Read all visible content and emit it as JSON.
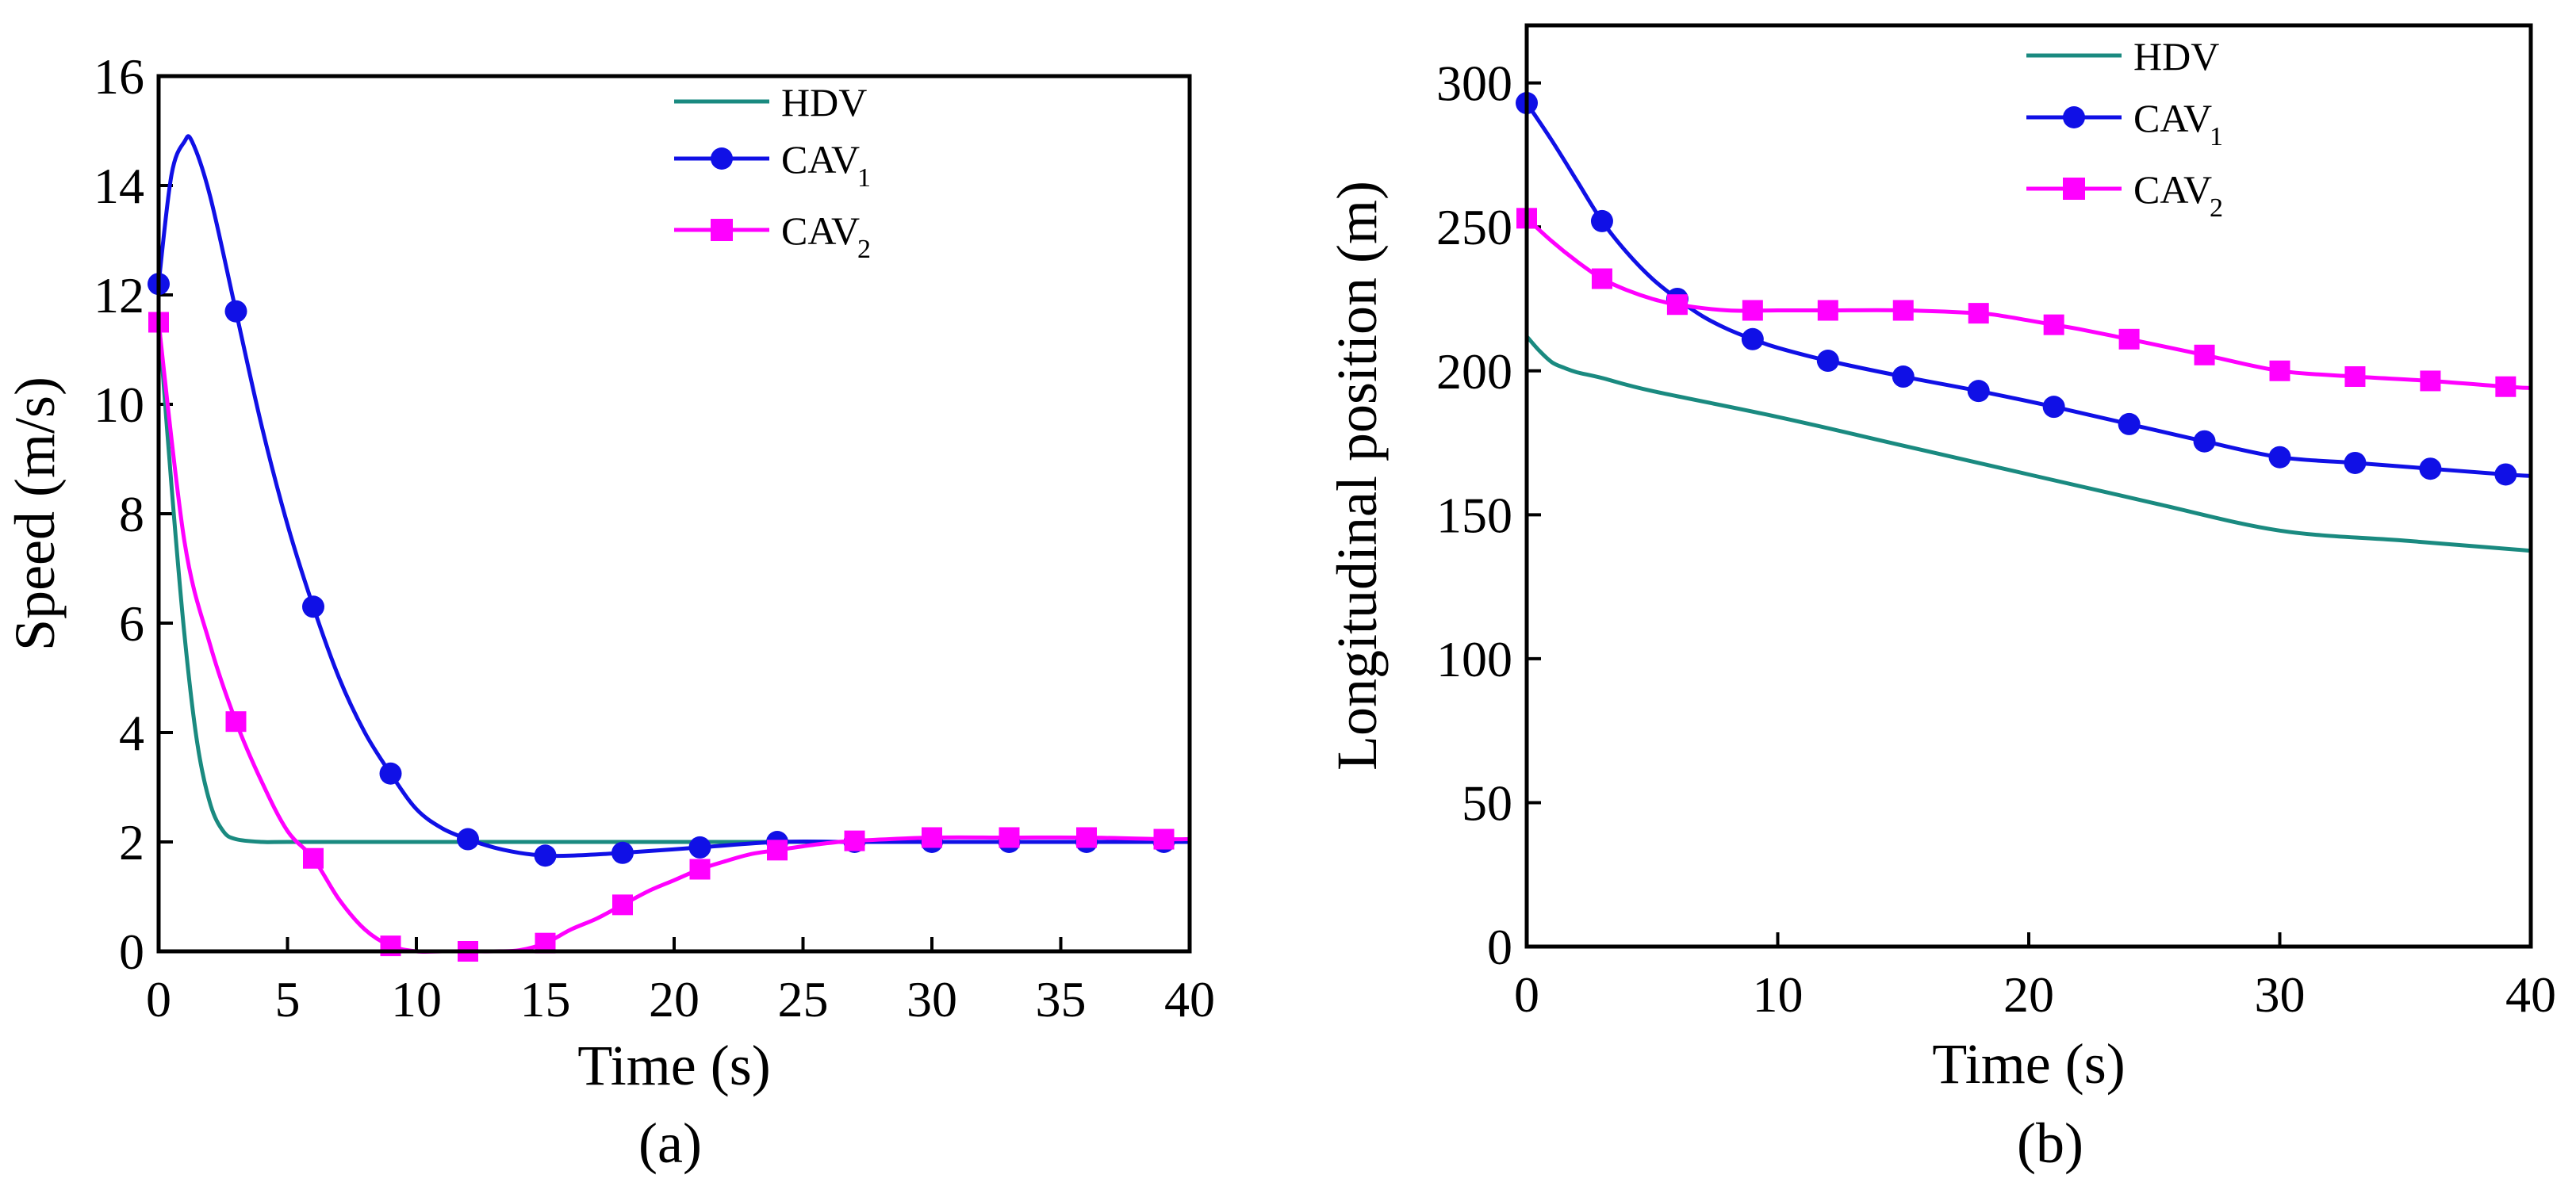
{
  "colors": {
    "HDV": "#1a8a80",
    "CAV1": "#1010e6",
    "CAV2": "#ff00ff",
    "axis": "#000000"
  },
  "legend_labels": {
    "hdv": "HDV",
    "cav1_main": "CAV",
    "cav1_sub": "1",
    "cav2_main": "CAV",
    "cav2_sub": "2"
  },
  "chart_data": [
    {
      "id": "a",
      "type": "line",
      "caption": "(a)",
      "xlabel": "Time (s)",
      "ylabel": "Speed (m/s)",
      "xlim": [
        0,
        40
      ],
      "ylim": [
        0,
        16
      ],
      "xticks": [
        0,
        5,
        10,
        15,
        20,
        25,
        30,
        35,
        40
      ],
      "yticks": [
        0,
        2,
        4,
        6,
        8,
        10,
        12,
        14,
        16
      ],
      "legend_position": "top-right",
      "series": [
        {
          "name": "HDV",
          "key": "HDV",
          "marker": "none",
          "x": [
            0,
            0.5,
            1,
            1.5,
            2,
            2.5,
            3,
            4,
            5,
            10,
            20,
            30,
            40
          ],
          "y": [
            11.6,
            8.5,
            5.8,
            3.8,
            2.7,
            2.2,
            2.05,
            2.0,
            2.0,
            2.0,
            2.0,
            2.0,
            2.0
          ]
        },
        {
          "name": "CAV1",
          "key": "CAV1",
          "marker": "circle",
          "x": [
            0,
            0.5,
            1,
            1.3,
            2,
            3,
            4,
            5,
            6,
            7,
            8,
            9,
            10,
            11,
            12,
            13,
            14,
            15,
            16,
            18,
            21,
            24,
            27,
            30,
            33,
            36,
            39,
            40
          ],
          "y": [
            12.2,
            14.2,
            14.8,
            14.8,
            13.8,
            11.7,
            9.6,
            7.8,
            6.3,
            5.0,
            4.0,
            3.25,
            2.6,
            2.25,
            2.05,
            1.9,
            1.8,
            1.75,
            1.75,
            1.8,
            1.9,
            2.0,
            2.0,
            2.0,
            2.0,
            2.0,
            2.0,
            2.0
          ],
          "markers_x": [
            0,
            3,
            6,
            9,
            12,
            15,
            18,
            21,
            24,
            27,
            30,
            33,
            36,
            39
          ],
          "markers_y": [
            12.2,
            11.7,
            6.3,
            3.25,
            2.05,
            1.75,
            1.8,
            1.9,
            2.0,
            2.0,
            2.0,
            2.0,
            2.0,
            2.0
          ]
        },
        {
          "name": "CAV2",
          "key": "CAV2",
          "marker": "square",
          "x": [
            0,
            1,
            2,
            3,
            4,
            5,
            6,
            7,
            8,
            9,
            10,
            11,
            12,
            13,
            14,
            15,
            16,
            17,
            18,
            19,
            20,
            21,
            22,
            23,
            24,
            25,
            26,
            27,
            30,
            33,
            36,
            39,
            40
          ],
          "y": [
            11.5,
            7.5,
            5.6,
            4.2,
            3.1,
            2.2,
            1.7,
            0.95,
            0.4,
            0.1,
            0.0,
            0.0,
            0.0,
            0.0,
            0.02,
            0.15,
            0.4,
            0.6,
            0.85,
            1.1,
            1.3,
            1.5,
            1.65,
            1.78,
            1.85,
            1.92,
            1.98,
            2.02,
            2.08,
            2.08,
            2.08,
            2.05,
            2.05
          ],
          "markers_x": [
            0,
            3,
            6,
            9,
            12,
            15,
            18,
            21,
            24,
            27,
            30,
            33,
            36,
            39
          ],
          "markers_y": [
            11.5,
            4.2,
            1.7,
            0.1,
            0.0,
            0.15,
            0.85,
            1.5,
            1.85,
            2.02,
            2.08,
            2.08,
            2.08,
            2.05
          ]
        }
      ]
    },
    {
      "id": "b",
      "type": "line",
      "caption": "(b)",
      "xlabel": "Time (s)",
      "ylabel": "Longitudinal position (m)",
      "xlim": [
        0,
        40
      ],
      "ylim": [
        0,
        320
      ],
      "xticks": [
        0,
        10,
        20,
        30,
        40
      ],
      "yticks": [
        0,
        50,
        100,
        150,
        200,
        250,
        300
      ],
      "legend_position": "top-right",
      "series": [
        {
          "name": "HDV",
          "key": "HDV",
          "marker": "none",
          "x": [
            0,
            0.5,
            1,
            1.5,
            2,
            3,
            5,
            10,
            15,
            20,
            25,
            30,
            35,
            40
          ],
          "y": [
            212,
            207,
            203,
            201,
            199.5,
            197.5,
            193,
            184,
            174,
            164,
            154,
            144.5,
            141,
            137.5
          ]
        },
        {
          "name": "CAV1",
          "key": "CAV1",
          "marker": "circle",
          "x": [
            0,
            1,
            2,
            3,
            4,
            5,
            6,
            7,
            8,
            9,
            10,
            12,
            15,
            18,
            21,
            24,
            27,
            30,
            33,
            36,
            39,
            40
          ],
          "y": [
            293,
            280,
            266,
            252,
            241,
            232,
            225,
            219,
            214.5,
            211,
            208,
            203.5,
            198,
            193,
            187.5,
            181.5,
            175.5,
            170,
            168,
            166,
            164,
            163.5
          ],
          "markers_x": [
            0,
            3,
            6,
            9,
            12,
            15,
            18,
            21,
            24,
            27,
            30,
            33,
            36,
            39
          ],
          "markers_y": [
            293,
            252,
            225,
            211,
            203.5,
            198,
            193,
            187.5,
            181.5,
            175.5,
            170,
            168,
            166,
            164
          ]
        },
        {
          "name": "CAV2",
          "key": "CAV2",
          "marker": "square",
          "x": [
            0,
            1,
            2,
            3,
            4,
            5,
            6,
            8,
            10,
            12,
            15,
            18,
            19,
            20,
            21,
            22,
            24,
            27,
            30,
            33,
            36,
            39,
            40
          ],
          "y": [
            253,
            245,
            238,
            232,
            228,
            225,
            223,
            221,
            221,
            221,
            221,
            220,
            219,
            217.5,
            216,
            214.5,
            211,
            205.5,
            200,
            198,
            196.5,
            194.5,
            194
          ],
          "markers_x": [
            0,
            3,
            6,
            9,
            12,
            15,
            18,
            21,
            24,
            27,
            30,
            33,
            36,
            39
          ],
          "markers_y": [
            253,
            232,
            223,
            221,
            221,
            221,
            220,
            216,
            211,
            205.5,
            200,
            198,
            196.5,
            194.5
          ]
        }
      ]
    }
  ]
}
